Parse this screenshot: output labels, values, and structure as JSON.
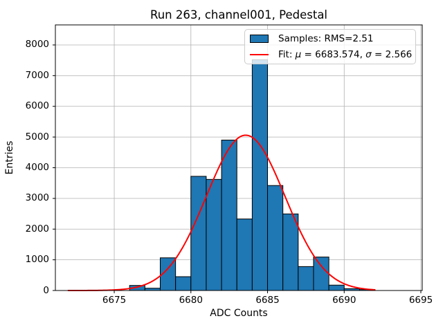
{
  "chart_data": {
    "type": "bar",
    "subtype": "histogram-with-gaussian-fit",
    "title": "Run 263, channel001, Pedestal",
    "xlabel": "ADC Counts",
    "ylabel": "Entries",
    "xlim": [
      6671.16,
      6695.09
    ],
    "ylim": [
      0,
      8653
    ],
    "xticks": [
      6675,
      6680,
      6685,
      6690,
      6695
    ],
    "yticks": [
      0,
      1000,
      2000,
      3000,
      4000,
      5000,
      6000,
      7000,
      8000
    ],
    "grid": true,
    "grid_color": "#b0b0b0",
    "legend_position": "upper right",
    "series": [
      {
        "name": "Samples: RMS=2.51",
        "type": "histogram",
        "color": "#1f77b4",
        "edge_color": "#000000",
        "bin_start": 6676,
        "bin_width": 1,
        "bin_edges": [
          6676,
          6677,
          6678,
          6679,
          6680,
          6681,
          6682,
          6683,
          6684,
          6685,
          6686,
          6687,
          6688,
          6689,
          6690,
          6691,
          6692
        ],
        "counts": [
          165,
          75,
          1065,
          450,
          3720,
          3620,
          4900,
          2330,
          7520,
          3420,
          2495,
          780,
          1090,
          175,
          60,
          30
        ]
      },
      {
        "name": "Fit: μ = 6683.574, σ = 2.566",
        "type": "gaussian",
        "color": "#ff0000",
        "mu": 6683.574,
        "sigma": 2.566,
        "amplitude": 5060,
        "x_range": [
          6672,
          6692
        ]
      }
    ]
  },
  "legend": {
    "samples_label": "Samples: RMS=2.51",
    "fit_prefix": "Fit: ",
    "fit_mu_symbol": "μ",
    "fit_mu_value": " = 6683.574, ",
    "fit_sigma_symbol": "σ",
    "fit_sigma_value": " = 2.566"
  }
}
